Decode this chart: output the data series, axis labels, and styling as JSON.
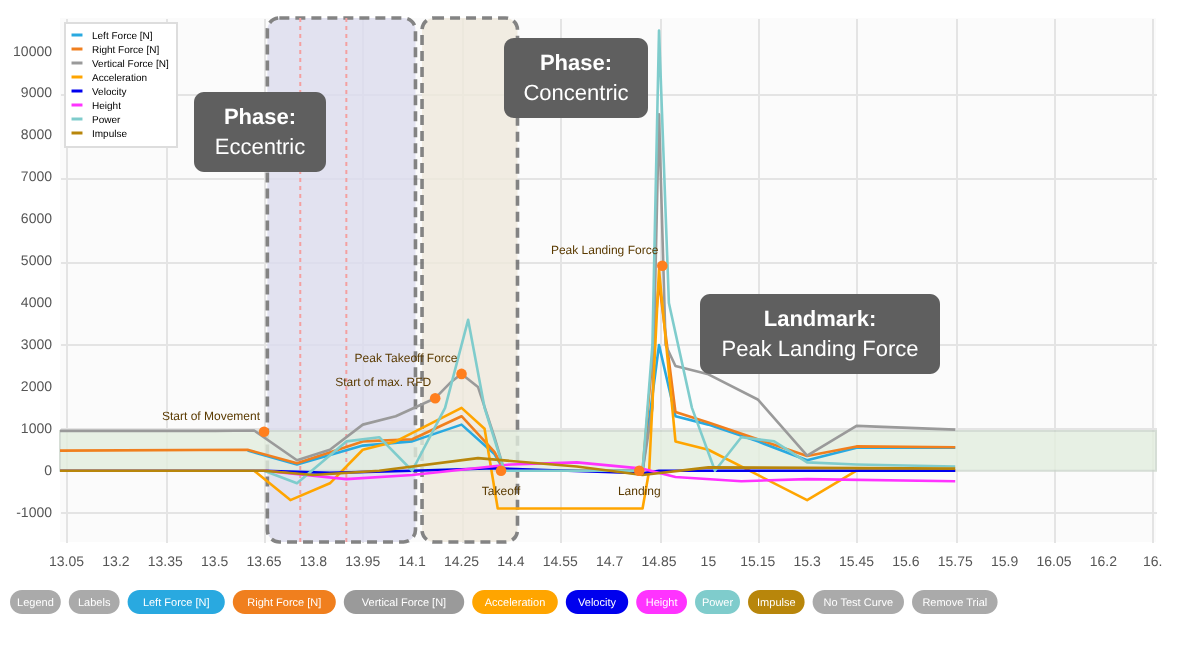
{
  "chart_data": {
    "type": "line",
    "xlim": [
      13.03,
      16.36
    ],
    "ylim": [
      -1700,
      10800
    ],
    "xticks": [
      13.05,
      13.2,
      13.35,
      13.5,
      13.65,
      13.8,
      13.95,
      14.1,
      14.25,
      14.4,
      14.55,
      14.7,
      14.85,
      15,
      15.15,
      15.3,
      15.45,
      15.6,
      15.75,
      15.9,
      16.05,
      16.2,
      {
        "value": 16.35,
        "label": "16."
      }
    ],
    "yticks": [
      -1000,
      0,
      1000,
      2000,
      3000,
      4000,
      5000,
      6000,
      7000,
      8000,
      9000,
      10000
    ],
    "grid": true,
    "legend": "top left",
    "marker": "none",
    "line_style": "solid",
    "series": [
      {
        "name": "Left Force [N]",
        "color": "#29a9e0",
        "x": [
          13.6,
          13.75,
          13.95,
          14.1,
          14.25,
          14.35,
          14.38,
          14.8,
          14.85,
          14.9,
          15.0,
          15.15,
          15.3,
          15.45,
          15.75
        ],
        "values": [
          480,
          150,
          600,
          700,
          1100,
          400,
          0,
          0,
          3000,
          1300,
          1100,
          700,
          250,
          550,
          550
        ]
      },
      {
        "name": "Right Force [N]",
        "color": "#f07f1e",
        "x": [
          13.03,
          13.6,
          13.75,
          13.95,
          14.1,
          14.25,
          14.35,
          14.38,
          14.8,
          14.85,
          14.9,
          15.0,
          15.15,
          15.3,
          15.45,
          15.75
        ],
        "values": [
          480,
          500,
          180,
          700,
          750,
          1300,
          450,
          0,
          0,
          4500,
          1400,
          1150,
          750,
          350,
          580,
          560
        ]
      },
      {
        "name": "Vertical Force [N]",
        "color": "#9a9a9a",
        "x": [
          13.03,
          13.5,
          13.62,
          13.75,
          13.85,
          13.95,
          14.05,
          14.17,
          14.22,
          14.25,
          14.3,
          14.35,
          14.38,
          14.8,
          14.83,
          14.85,
          14.87,
          14.9,
          15.0,
          15.15,
          15.3,
          15.45,
          15.75
        ],
        "values": [
          950,
          950,
          960,
          250,
          500,
          1100,
          1300,
          1730,
          2130,
          2310,
          2000,
          800,
          0,
          0,
          1500,
          8500,
          3000,
          2500,
          2300,
          1700,
          360,
          1070,
          980
        ]
      },
      {
        "name": "Acceleration",
        "color": "#ffa500",
        "x": [
          13.03,
          13.62,
          13.73,
          13.85,
          13.95,
          14.05,
          14.25,
          14.32,
          14.36,
          14.8,
          14.82,
          14.85,
          14.9,
          15.0,
          15.15,
          15.3,
          15.45,
          15.75
        ],
        "values": [
          0,
          0,
          -700,
          -300,
          500,
          700,
          1500,
          1000,
          -900,
          -900,
          0,
          4800,
          700,
          500,
          -100,
          -700,
          0,
          0
        ]
      },
      {
        "name": "Velocity",
        "color": "#0000ee",
        "x": [
          13.03,
          13.65,
          13.85,
          14.1,
          14.35,
          14.8,
          14.85,
          15.75
        ],
        "values": [
          0,
          0,
          -50,
          0,
          60,
          -60,
          0,
          0
        ]
      },
      {
        "name": "Height",
        "color": "#ff33ff",
        "x": [
          13.03,
          13.65,
          13.9,
          14.1,
          14.4,
          14.6,
          14.8,
          14.9,
          15.1,
          15.3,
          15.75
        ],
        "values": [
          0,
          0,
          -200,
          -100,
          150,
          200,
          50,
          -150,
          -250,
          -200,
          -250
        ]
      },
      {
        "name": "Power",
        "color": "#7fcccc",
        "x": [
          13.03,
          13.65,
          13.75,
          13.9,
          14.0,
          14.1,
          14.2,
          14.27,
          14.32,
          14.38,
          14.8,
          14.83,
          14.85,
          14.88,
          14.95,
          15.02,
          15.1,
          15.2,
          15.3,
          15.45,
          15.75
        ],
        "values": [
          0,
          0,
          -300,
          700,
          800,
          0,
          1500,
          3600,
          1500,
          0,
          0,
          3000,
          10500,
          4000,
          1500,
          0,
          800,
          700,
          200,
          150,
          100
        ]
      },
      {
        "name": "Impulse",
        "color": "#b8860b",
        "x": [
          13.03,
          13.65,
          13.8,
          14.0,
          14.3,
          14.6,
          14.8,
          15.0,
          15.75
        ],
        "values": [
          0,
          0,
          -100,
          0,
          300,
          100,
          -100,
          80,
          50
        ]
      }
    ],
    "bands": [
      {
        "axis": "x",
        "from": 13.66,
        "to": 14.11,
        "color": "#dcdcee"
      },
      {
        "axis": "x",
        "from": 14.13,
        "to": 14.42,
        "color": "#efe9dc"
      },
      {
        "axis": "y",
        "from": 0,
        "to": 950,
        "color": "#e3eedf"
      }
    ],
    "ref_lines": [
      {
        "axis": "x",
        "value": 13.76,
        "color": "#f4a0a0",
        "line_style": "dotted"
      },
      {
        "axis": "x",
        "value": 13.9,
        "color": "#f4a0a0",
        "line_style": "dotted"
      }
    ],
    "annotations": [
      "Phase: Eccentric",
      "Phase: Concentric",
      "Landmark: Peak Landing Force",
      "Legend",
      "Labels",
      "No Test Curve",
      "Remove Trial",
      {
        "text": "Start of Movement",
        "x": 13.65,
        "y": 930
      },
      {
        "text": "Start of max. RFD",
        "x": 14.17,
        "y": 1730
      },
      {
        "text": "Peak Takeoff Force",
        "x": 14.25,
        "y": 2310
      },
      {
        "text": "Takeoff",
        "x": 14.37,
        "y": 0
      },
      {
        "text": "Landing",
        "x": 14.79,
        "y": 0
      },
      {
        "text": "Peak Landing Force",
        "x": 14.86,
        "y": 4890
      }
    ]
  }
}
